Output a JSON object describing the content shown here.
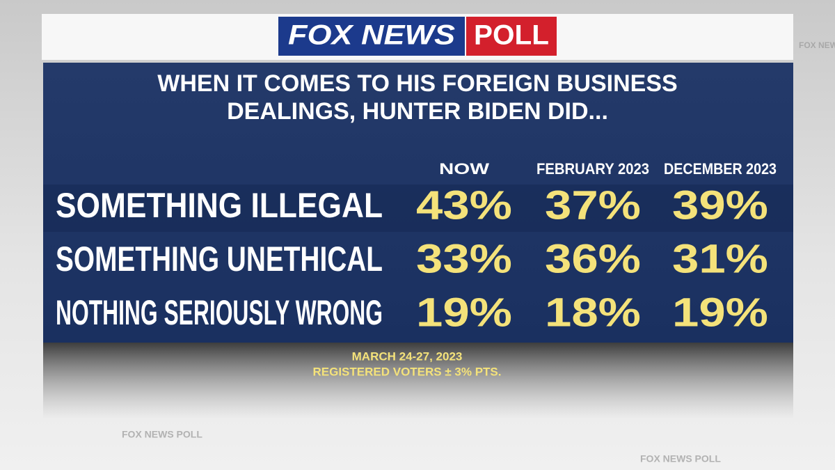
{
  "header": {
    "brand": "FOX NEWS",
    "tag": "POLL"
  },
  "title": [
    "WHEN IT COMES TO HIS FOREIGN BUSINESS",
    "DEALINGS, HUNTER BIDEN DID..."
  ],
  "table": {
    "columns": [
      "NOW",
      "FEBRUARY 2023",
      "DECEMBER 2023"
    ],
    "rows": [
      {
        "label": "SOMETHING ILLEGAL",
        "values": [
          "43%",
          "37%",
          "39%"
        ]
      },
      {
        "label": "SOMETHING UNETHICAL",
        "values": [
          "33%",
          "36%",
          "31%"
        ]
      },
      {
        "label": "NOTHING SERIOUSLY WRONG",
        "values": [
          "19%",
          "18%",
          "19%"
        ]
      }
    ]
  },
  "footer": [
    "MARCH 24-27, 2023",
    "REGISTERED VOTERS ± 3% PTS."
  ],
  "watermark": "FOX NEWS POLL"
}
